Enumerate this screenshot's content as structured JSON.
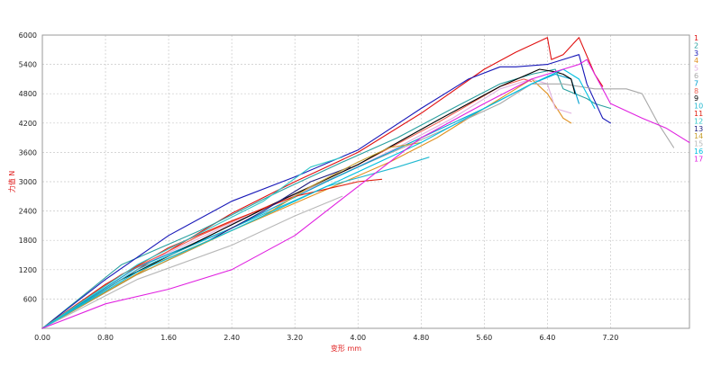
{
  "chart_data": {
    "type": "line",
    "title": "",
    "xlabel": "变形  mm",
    "ylabel": "力值 N",
    "xlim": [
      0,
      8.2
    ],
    "ylim": [
      0,
      6000
    ],
    "xticks": [
      "0.00",
      "0.80",
      "1.60",
      "2.40",
      "3.20",
      "4.00",
      "4.80",
      "5.60",
      "6.40",
      "7.20"
    ],
    "yticks": [
      "600",
      "1200",
      "1800",
      "2400",
      "3000",
      "3600",
      "4200",
      "4800",
      "5400",
      "6000"
    ],
    "grid": true,
    "legend_position": "right",
    "series": [
      {
        "name": "1",
        "color": "#e01010",
        "x": [
          0,
          1.2,
          2.4,
          3.2,
          4.0,
          4.8,
          5.6,
          6.0,
          6.4,
          6.45,
          6.6,
          6.8,
          7.0,
          7.1
        ],
        "y": [
          0,
          1200,
          2350,
          3000,
          3600,
          4400,
          5300,
          5650,
          5950,
          5500,
          5600,
          5950,
          5200,
          4950
        ]
      },
      {
        "name": "2",
        "color": "#2aa0a0",
        "x": [
          0,
          1.0,
          2.0,
          3.0,
          3.8,
          4.5,
          5.2,
          5.8,
          6.2,
          6.5,
          6.6,
          6.9,
          7.0,
          7.2
        ],
        "y": [
          0,
          1300,
          2000,
          2800,
          3400,
          3900,
          4500,
          5000,
          5200,
          5300,
          4900,
          4700,
          4600,
          4500
        ]
      },
      {
        "name": "3",
        "color": "#1818b8",
        "x": [
          0,
          0.8,
          1.6,
          2.4,
          3.2,
          4.0,
          4.8,
          5.4,
          5.8,
          6.0,
          6.4,
          6.8,
          6.9,
          7.1,
          7.2
        ],
        "y": [
          0,
          1000,
          1900,
          2600,
          3100,
          3650,
          4500,
          5100,
          5350,
          5350,
          5400,
          5600,
          5000,
          4300,
          4200
        ]
      },
      {
        "name": "4",
        "color": "#e09020",
        "x": [
          0,
          1.4,
          2.4,
          3.4,
          4.4,
          5.0,
          5.6,
          6.0,
          6.2,
          6.4,
          6.6,
          6.7
        ],
        "y": [
          0,
          1300,
          2000,
          2700,
          3400,
          3900,
          4500,
          4900,
          5100,
          4800,
          4300,
          4200
        ]
      },
      {
        "name": "5",
        "color": "#e0b0e0",
        "x": [
          0,
          1.2,
          2.4,
          3.6,
          4.5,
          5.2,
          5.8,
          6.2,
          6.4,
          6.5,
          6.7
        ],
        "y": [
          0,
          1250,
          2150,
          3000,
          3700,
          4300,
          4900,
          5100,
          5000,
          4500,
          4400
        ]
      },
      {
        "name": "6",
        "color": "#a8a8a8",
        "x": [
          0,
          1.0,
          2.0,
          3.0,
          4.0,
          5.0,
          5.8,
          6.2,
          6.6,
          7.0,
          7.4,
          7.6,
          7.8,
          8.0
        ],
        "y": [
          0,
          1100,
          1800,
          2600,
          3300,
          4000,
          4600,
          5000,
          5000,
          4900,
          4900,
          4800,
          4200,
          3700
        ]
      },
      {
        "name": "7",
        "color": "#00a0d0",
        "x": [
          0,
          1.2,
          2.4,
          3.6,
          4.8,
          5.6,
          6.2,
          6.5,
          6.7,
          6.8
        ],
        "y": [
          0,
          1250,
          2050,
          3000,
          3900,
          4500,
          5000,
          5200,
          5100,
          4600
        ]
      },
      {
        "name": "8",
        "color": "#f06050",
        "x": [
          0,
          1.0,
          2.0,
          3.0,
          4.0,
          5.0,
          5.8,
          6.1,
          6.2
        ],
        "y": [
          0,
          1100,
          1900,
          2600,
          3350,
          4200,
          4950,
          5100,
          5050
        ]
      },
      {
        "name": "9",
        "color": "#000000",
        "x": [
          0,
          1.0,
          2.0,
          3.0,
          4.0,
          5.0,
          5.8,
          6.3,
          6.5,
          6.6,
          6.7,
          6.75
        ],
        "y": [
          0,
          1000,
          1800,
          2600,
          3350,
          4250,
          4950,
          5300,
          5250,
          5200,
          5100,
          4800
        ]
      },
      {
        "name": "10",
        "color": "#20b8d0",
        "x": [
          0,
          1.2,
          2.4,
          3.6,
          4.5,
          4.9
        ],
        "y": [
          0,
          1200,
          2050,
          2900,
          3300,
          3500
        ]
      },
      {
        "name": "11",
        "color": "#e02010",
        "x": [
          0,
          0.8,
          1.6,
          2.4,
          3.2,
          4.0,
          4.3
        ],
        "y": [
          0,
          900,
          1650,
          2200,
          2700,
          3000,
          3050
        ]
      },
      {
        "name": "12",
        "color": "#30c8c8",
        "x": [
          0,
          1.2,
          2.0,
          2.8,
          3.4,
          3.8
        ],
        "y": [
          0,
          1300,
          1950,
          2600,
          3300,
          3500
        ]
      },
      {
        "name": "13",
        "color": "#202080",
        "x": [
          0,
          1.2,
          2.0,
          2.8,
          3.4,
          3.9
        ],
        "y": [
          0,
          1100,
          1700,
          2400,
          3000,
          3300
        ]
      },
      {
        "name": "14",
        "color": "#c8a030",
        "x": [
          0,
          1.2,
          2.0,
          2.8,
          3.4,
          4.0,
          4.4,
          4.8
        ],
        "y": [
          0,
          1100,
          1700,
          2300,
          2900,
          3400,
          3700,
          3800
        ]
      },
      {
        "name": "15",
        "color": "#b8b8b8",
        "x": [
          0,
          1.2,
          2.4,
          3.2,
          3.8
        ],
        "y": [
          0,
          1000,
          1700,
          2300,
          2700
        ]
      },
      {
        "name": "16",
        "color": "#00c0e0",
        "x": [
          0,
          1.2,
          2.4,
          3.6,
          4.8,
          5.6,
          6.2,
          6.6,
          6.8,
          7.0
        ],
        "y": [
          0,
          1150,
          2000,
          2900,
          3800,
          4500,
          5000,
          5300,
          5100,
          4500
        ]
      },
      {
        "name": "17",
        "color": "#e020e0",
        "x": [
          0,
          0.8,
          1.6,
          2.4,
          3.2,
          4.0,
          4.8,
          5.6,
          6.2,
          6.6,
          6.8,
          6.9,
          7.2,
          7.6,
          7.9,
          8.2
        ],
        "y": [
          0,
          500,
          800,
          1200,
          1900,
          2900,
          3900,
          4600,
          5100,
          5300,
          5400,
          5500,
          4600,
          4300,
          4100,
          3800
        ]
      }
    ]
  }
}
